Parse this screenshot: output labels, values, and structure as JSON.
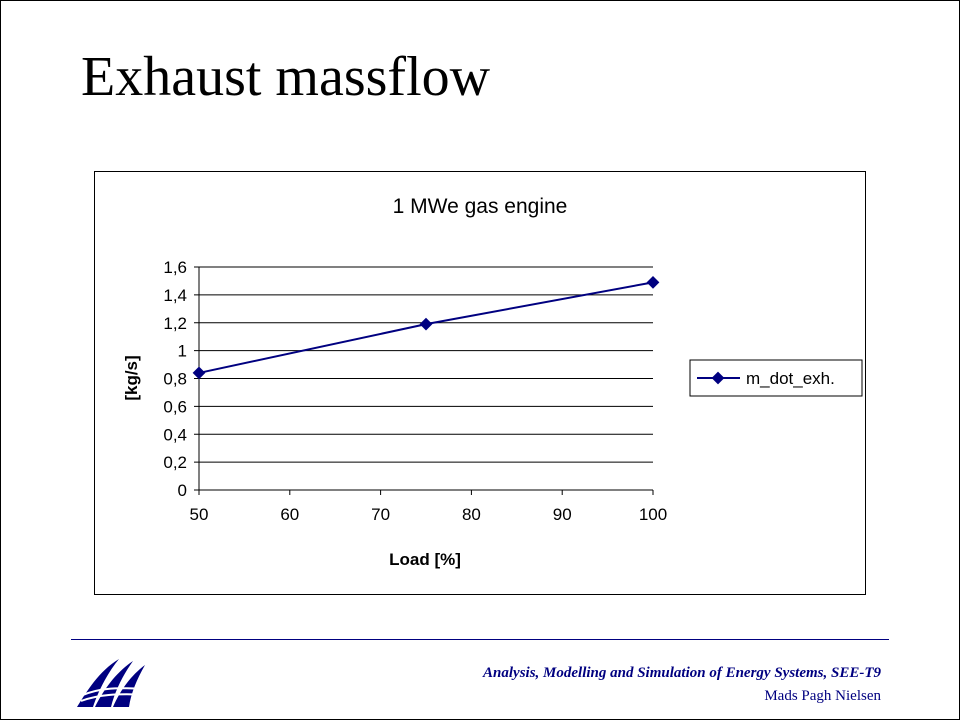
{
  "slide": {
    "title": "Exhaust massflow",
    "footer": {
      "line1": "Analysis, Modelling  and Simulation of Energy Systems, SEE-T9",
      "line2": "Mads Pagh Nielsen",
      "logo_icon": "wave-logo-icon",
      "color": "#000080"
    }
  },
  "chart_data": {
    "type": "line",
    "title": "1 MWe gas engine",
    "xlabel": "Load [%]",
    "ylabel": "[kg/s]",
    "xlim": [
      50,
      100
    ],
    "ylim": [
      0,
      1.6
    ],
    "xticks": [
      "50",
      "60",
      "70",
      "80",
      "90",
      "100"
    ],
    "yticks": [
      "0",
      "0,2",
      "0,4",
      "0,6",
      "0,8",
      "1",
      "1,2",
      "1,4",
      "1,6"
    ],
    "grid": "horizontal",
    "legend_position": "right",
    "series": [
      {
        "name": "m_dot_exh.",
        "color": "#000080",
        "marker": "diamond",
        "x": [
          50,
          75,
          100
        ],
        "y": [
          0.84,
          1.19,
          1.49
        ]
      }
    ]
  }
}
